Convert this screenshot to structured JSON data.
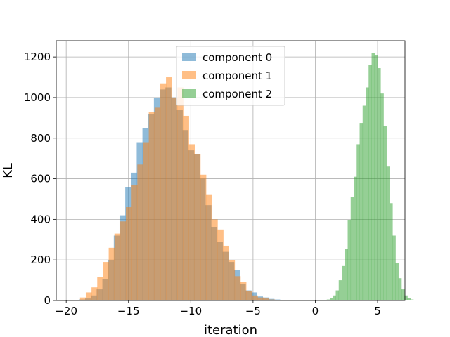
{
  "chart_data": {
    "type": "bar",
    "subtype": "histogram",
    "title": "",
    "xlabel": "iteration",
    "ylabel": "KL",
    "xlim": [
      -20.8,
      7.2
    ],
    "ylim": [
      0,
      1280
    ],
    "grid": true,
    "legend_position": "top-center",
    "x_ticks": [
      {
        "value": -20,
        "label": "−20"
      },
      {
        "value": -15,
        "label": "−15"
      },
      {
        "value": -10,
        "label": "−10"
      },
      {
        "value": -5,
        "label": "−5"
      },
      {
        "value": 0,
        "label": "0"
      },
      {
        "value": 5,
        "label": "5"
      }
    ],
    "y_ticks": [
      {
        "value": 0,
        "label": "0"
      },
      {
        "value": 200,
        "label": "200"
      },
      {
        "value": 400,
        "label": "400"
      },
      {
        "value": 600,
        "label": "600"
      },
      {
        "value": 800,
        "label": "800"
      },
      {
        "value": 1000,
        "label": "1000"
      },
      {
        "value": 1200,
        "label": "1200"
      }
    ],
    "series": [
      {
        "name": "component 0",
        "color": "#1f77b4",
        "opacity": 0.5,
        "bin_start": -19.4,
        "bin_width": 0.46,
        "counts": [
          2,
          5,
          10,
          25,
          55,
          105,
          200,
          320,
          420,
          560,
          630,
          780,
          850,
          920,
          1000,
          1040,
          1050,
          1000,
          940,
          840,
          740,
          720,
          600,
          470,
          360,
          290,
          240,
          190,
          150,
          80,
          50,
          40,
          20,
          15,
          8,
          5,
          3,
          2,
          1,
          1,
          1
        ]
      },
      {
        "name": "component 1",
        "color": "#ff7f0e",
        "opacity": 0.5,
        "bin_start": -19.35,
        "bin_width": 0.46,
        "counts": [
          3,
          15,
          40,
          65,
          115,
          190,
          260,
          330,
          390,
          460,
          570,
          670,
          780,
          930,
          950,
          1070,
          1100,
          1000,
          1050,
          910,
          770,
          720,
          620,
          520,
          400,
          350,
          270,
          200,
          120,
          90,
          45,
          25,
          15,
          10,
          5,
          2,
          1,
          1
        ]
      },
      {
        "name": "component 2",
        "color": "#2ca02c",
        "opacity": 0.5,
        "bin_start": 0.68,
        "bin_width": 0.24,
        "counts": [
          2,
          5,
          12,
          25,
          50,
          100,
          170,
          255,
          395,
          510,
          610,
          770,
          875,
          960,
          1050,
          1160,
          1220,
          1210,
          1145,
          1020,
          860,
          660,
          480,
          320,
          185,
          110,
          55,
          25,
          12,
          5,
          2,
          1
        ]
      }
    ]
  }
}
